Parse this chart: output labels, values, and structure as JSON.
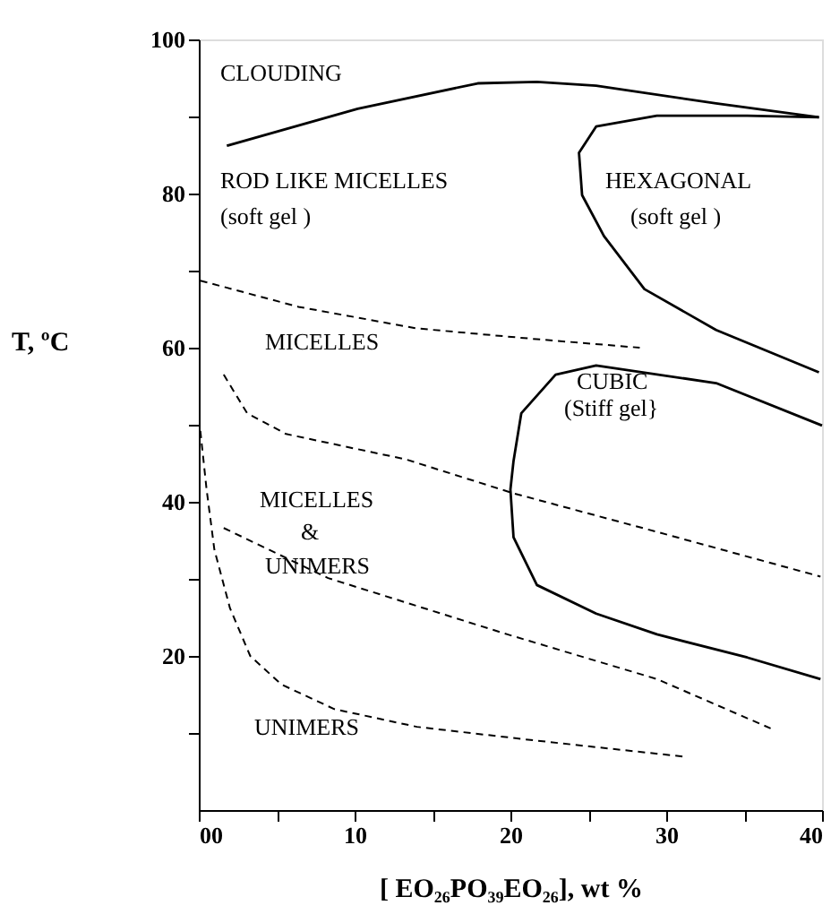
{
  "chart_data": {
    "type": "line",
    "xlabel": "[ EO₂₆PO₃₉EO₂₆], wt %",
    "ylabel": "T, ºC",
    "xlim": [
      0,
      40
    ],
    "ylim": [
      0,
      100
    ],
    "xticks": [
      {
        "value": 0,
        "label": "00"
      },
      {
        "value": 5,
        "label": null
      },
      10,
      {
        "value": 15,
        "label": null
      },
      20,
      {
        "value": 25,
        "label": null
      },
      30,
      {
        "value": 35,
        "label": null
      },
      40
    ],
    "yticks": [
      {
        "value": 10,
        "label": null
      },
      20,
      {
        "value": 30,
        "label": null
      },
      40,
      {
        "value": 50,
        "label": null
      },
      60,
      {
        "value": 70,
        "label": null
      },
      80,
      {
        "value": 90,
        "label": null
      },
      100
    ],
    "grid": false,
    "marker": "none",
    "series": [
      {
        "color": "#000000",
        "line_style": "solid",
        "x": [
          1.8,
          10.2,
          17.9,
          21.7,
          25.5,
          33.2,
          39.8
        ],
        "values": [
          86.2,
          91,
          94.3,
          94.5,
          94,
          91.7,
          89.9
        ]
      },
      {
        "color": "#000000",
        "line_style": "solid",
        "x": [
          39.8,
          35.2,
          29.4,
          25.5,
          24.4,
          24.6,
          26,
          28.6,
          33.2,
          39.8
        ],
        "values": [
          89.9,
          90.1,
          90.1,
          88.7,
          85.3,
          79.8,
          74.5,
          67.6,
          62.3,
          56.8
        ]
      },
      {
        "color": "#000000",
        "line_style": "solid",
        "x": [
          40,
          33.2,
          25.5,
          22.9,
          20.7,
          20.2,
          20,
          20.2,
          21.7,
          25.5,
          29.4,
          35.2,
          39.9
        ],
        "values": [
          49.9,
          55.4,
          57.7,
          56.5,
          51.5,
          45.3,
          41.6,
          35.4,
          29.2,
          25.5,
          22.8,
          19.8,
          17
        ]
      },
      {
        "color": "#000000",
        "line_style": "dashed",
        "x": [
          0.1,
          6.4,
          14,
          21.7,
          28.3
        ],
        "values": [
          68.7,
          65.3,
          62.5,
          61.1,
          60
        ]
      },
      {
        "color": "#000000",
        "line_style": "dashed",
        "x": [
          1.6,
          3.1,
          5.6,
          13.3,
          20.2,
          29.4,
          39.9
        ],
        "values": [
          56.5,
          51.5,
          48.8,
          45.5,
          41.1,
          36.1,
          30.3
        ]
      },
      {
        "color": "#000000",
        "line_style": "dashed",
        "x": [
          1.6,
          8.3,
          19.8,
          29.4,
          36.7
        ],
        "values": [
          36.6,
          30.1,
          22.8,
          17,
          10.6
        ]
      },
      {
        "color": "#000000",
        "line_style": "dashed",
        "x": [
          0.1,
          0.5,
          1,
          2,
          3.3,
          5.3,
          8.7,
          14,
          21.7,
          31.3
        ],
        "values": [
          49.2,
          41.6,
          33.8,
          26.2,
          20,
          16.3,
          13.1,
          10.8,
          9,
          6.9
        ]
      }
    ],
    "annotations": [
      "CLOUDING",
      "ROD LIKE MICELLES",
      "(soft gel )",
      "HEXAGONAL",
      "(soft gel )",
      "MICELLES",
      "CUBIC",
      "(Stiff gel}",
      "MICELLES",
      "&",
      "UNIMERS",
      "UNIMERS"
    ]
  }
}
